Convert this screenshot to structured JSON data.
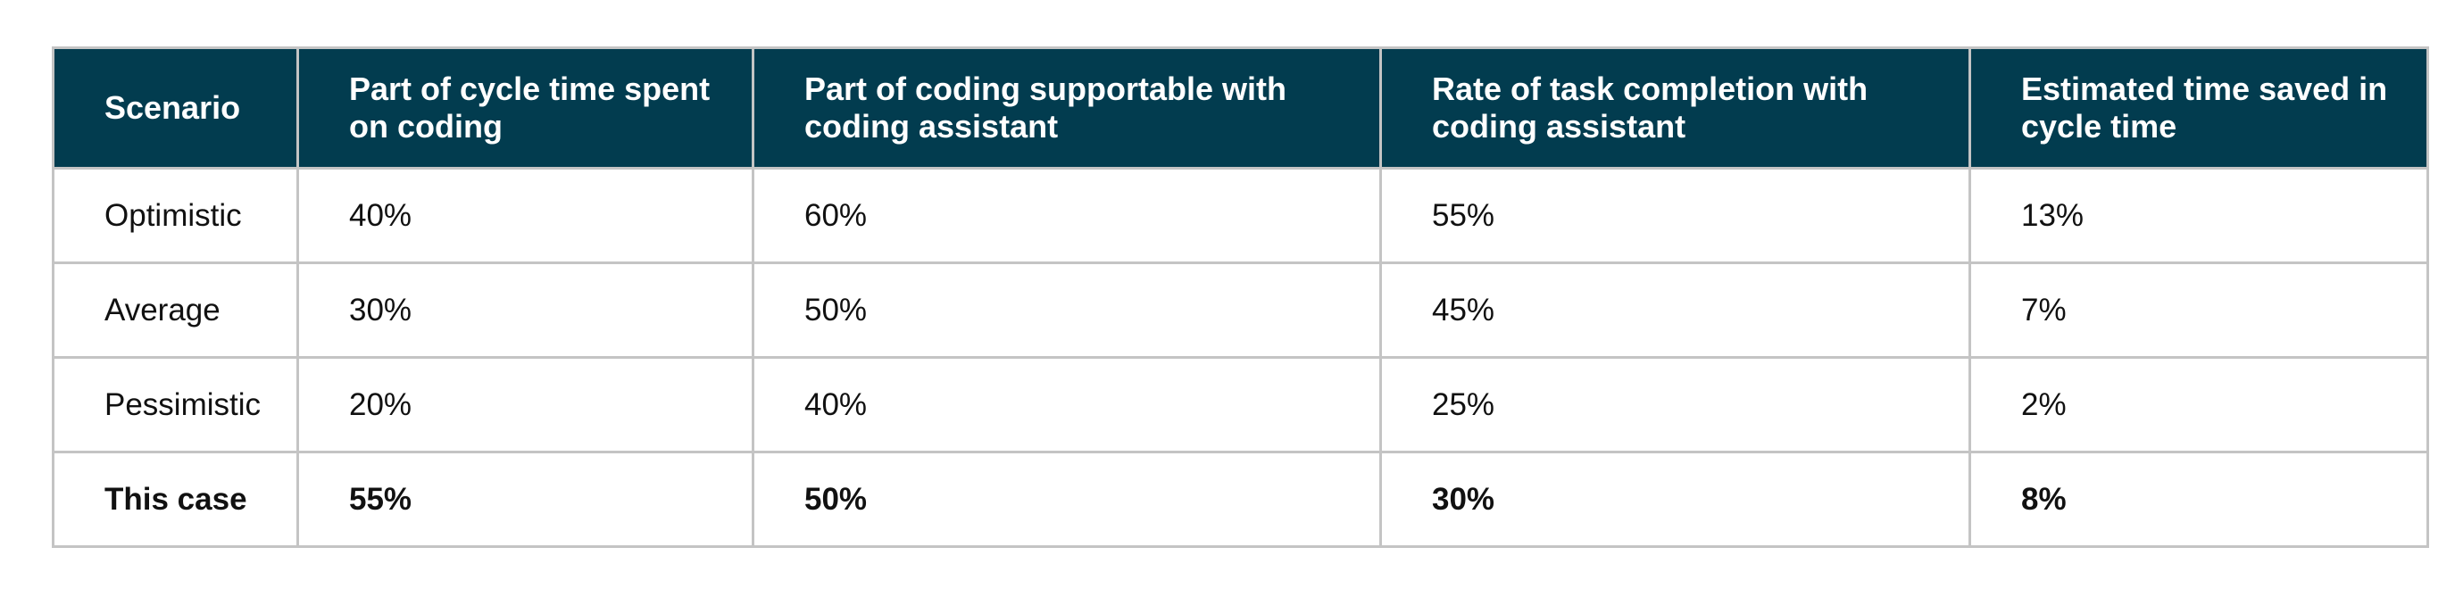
{
  "table": {
    "headers": [
      "Scenario",
      "Part of cycle time spent on coding",
      "Part of coding supportable with coding assistant",
      "Rate of task completion with coding assistant",
      "Estimated time saved in cycle time"
    ],
    "rows": [
      {
        "cells": [
          "Optimistic",
          "40%",
          "60%",
          "55%",
          "13%"
        ],
        "bold": false
      },
      {
        "cells": [
          "Average",
          "30%",
          "50%",
          "45%",
          "7%"
        ],
        "bold": false
      },
      {
        "cells": [
          "Pessimistic",
          "20%",
          "40%",
          "25%",
          "2%"
        ],
        "bold": false
      },
      {
        "cells": [
          "This case",
          "55%",
          "50%",
          "30%",
          "8%"
        ],
        "bold": true
      }
    ],
    "colors": {
      "header_background": "#023c4f",
      "header_text": "#ffffff",
      "border": "#c4c4c4",
      "body_text": "#111111"
    }
  }
}
